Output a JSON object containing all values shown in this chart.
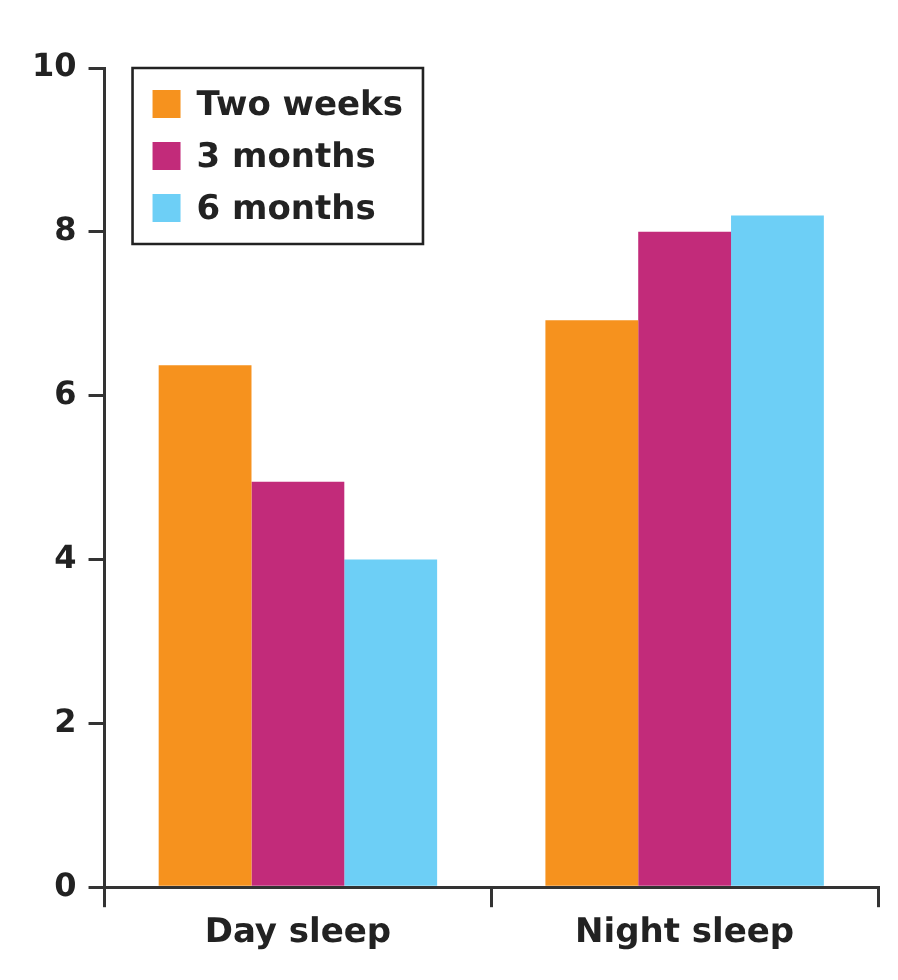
{
  "chart_data": {
    "type": "bar",
    "categories": [
      "Day sleep",
      "Night sleep"
    ],
    "series": [
      {
        "name": "Two weeks",
        "color": "#f6921e",
        "values": [
          6.37,
          6.92
        ]
      },
      {
        "name": "3 months",
        "color": "#c22b7a",
        "values": [
          4.95,
          8.0
        ]
      },
      {
        "name": "6 months",
        "color": "#6dcff6",
        "values": [
          4.0,
          8.2
        ]
      }
    ],
    "ylim": [
      0,
      10
    ],
    "yticks": [
      0,
      2,
      4,
      6,
      8,
      10
    ],
    "legend": "top left"
  }
}
